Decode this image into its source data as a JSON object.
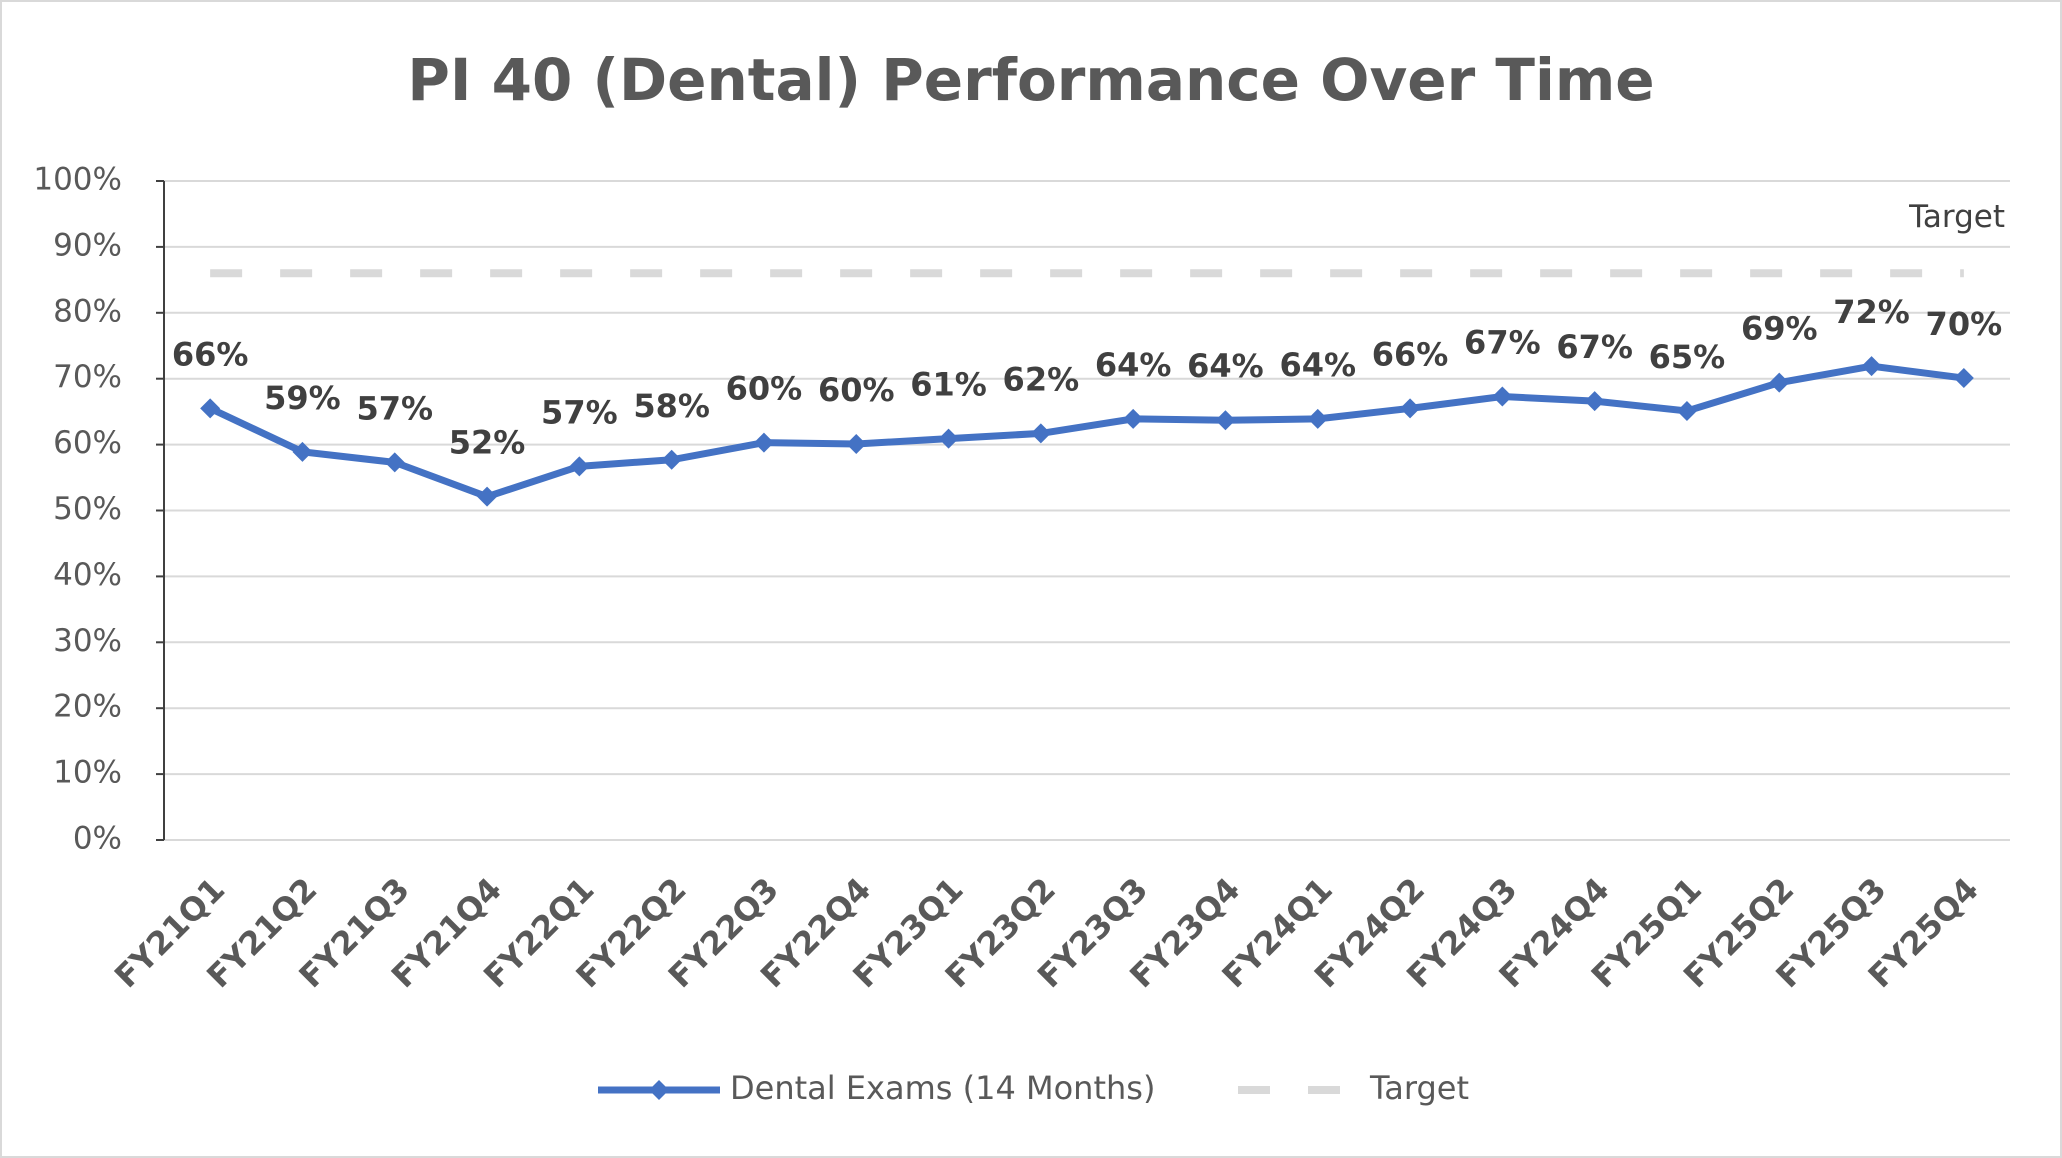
{
  "chart_data": {
    "type": "line",
    "title": "PI 40 (Dental) Performance Over Time",
    "categories": [
      "FY21Q1",
      "FY21Q2",
      "FY21Q3",
      "FY21Q4",
      "FY22Q1",
      "FY22Q2",
      "FY22Q3",
      "FY22Q4",
      "FY23Q1",
      "FY23Q2",
      "FY23Q3",
      "FY23Q4",
      "FY24Q1",
      "FY24Q2",
      "FY24Q3",
      "FY24Q4",
      "FY25Q1",
      "FY25Q2",
      "FY25Q3",
      "FY25Q4"
    ],
    "series": [
      {
        "name": "Dental Exams (14 Months)",
        "color": "#4472c4",
        "marker": "diamond",
        "values": [
          65.5,
          58.9,
          57.3,
          52.1,
          56.7,
          57.7,
          60.3,
          60.1,
          60.9,
          61.7,
          63.9,
          63.7,
          63.9,
          65.5,
          67.3,
          66.6,
          65.1,
          69.4,
          71.9,
          70.1
        ],
        "value_labels": [
          "66%",
          "59%",
          "57%",
          "52%",
          "57%",
          "58%",
          "60%",
          "60%",
          "61%",
          "62%",
          "64%",
          "64%",
          "64%",
          "66%",
          "67%",
          "67%",
          "65%",
          "69%",
          "72%",
          "70%"
        ]
      },
      {
        "name": "Target",
        "color": "#d9d9d9",
        "dashed": true,
        "values": [
          86,
          86,
          86,
          86,
          86,
          86,
          86,
          86,
          86,
          86,
          86,
          86,
          86,
          86,
          86,
          86,
          86,
          86,
          86,
          86
        ]
      }
    ],
    "ylim": [
      0,
      100
    ],
    "yticks": [
      {
        "value": 0,
        "label": "0%"
      },
      {
        "value": 10,
        "label": "10%"
      },
      {
        "value": 20,
        "label": "20%"
      },
      {
        "value": 30,
        "label": "30%"
      },
      {
        "value": 40,
        "label": "40%"
      },
      {
        "value": 50,
        "label": "50%"
      },
      {
        "value": 60,
        "label": "60%"
      },
      {
        "value": 70,
        "label": "70%"
      },
      {
        "value": 80,
        "label": "80%"
      },
      {
        "value": 90,
        "label": "90%"
      },
      {
        "value": 100,
        "label": "100%"
      }
    ],
    "grid": true,
    "legend": "bottom"
  }
}
